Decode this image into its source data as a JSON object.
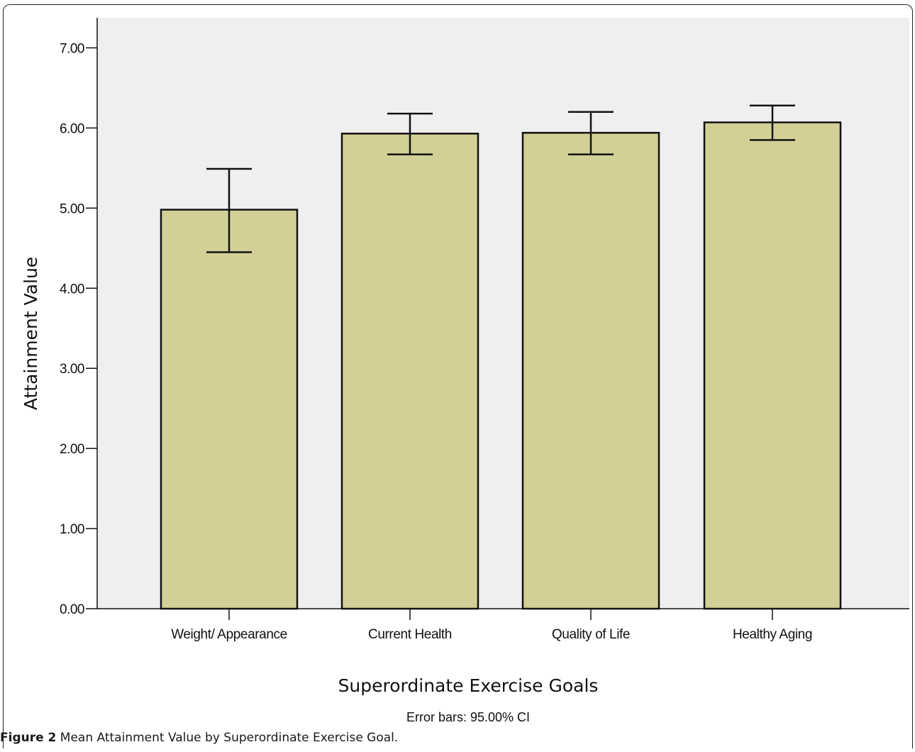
{
  "chart_data": {
    "type": "bar",
    "categories": [
      "Weight/ Appearance",
      "Current Health",
      "Quality of Life",
      "Healthy Aging"
    ],
    "values": [
      4.98,
      5.93,
      5.94,
      6.07
    ],
    "error_low": [
      4.45,
      5.67,
      5.67,
      5.85
    ],
    "error_high": [
      5.49,
      6.18,
      6.2,
      6.28
    ],
    "ylim": [
      0,
      7.0
    ],
    "yticks": [
      "0.00",
      "1.00",
      "2.00",
      "3.00",
      "4.00",
      "5.00",
      "6.00",
      "7.00"
    ],
    "xlabel": "Superordinate Exercise Goals",
    "ylabel": "Attainment Value",
    "note": "Error bars: 95.00% CI",
    "grid": false,
    "colors": {
      "bar_fill": "#d3d097",
      "plot_background": "#efefef",
      "outline": "#111111"
    }
  },
  "caption": {
    "label": "Figure 2",
    "text": "Mean Attainment Value by Superordinate Exercise Goal",
    "trailing": "."
  }
}
